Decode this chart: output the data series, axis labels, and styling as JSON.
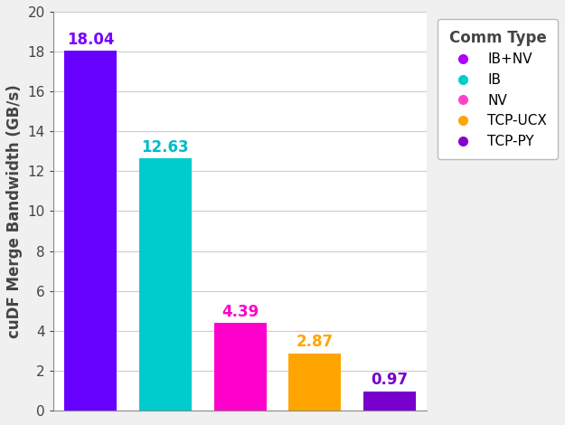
{
  "categories": [
    "IB+NV",
    "IB",
    "NV",
    "TCP-UCX",
    "TCP-PY"
  ],
  "values": [
    18.04,
    12.63,
    4.39,
    2.87,
    0.97
  ],
  "bar_colors": [
    "#6600FF",
    "#00CCCC",
    "#FF00CC",
    "#FFA500",
    "#7700CC"
  ],
  "label_colors": [
    "#7700FF",
    "#00BBCC",
    "#FF00CC",
    "#FFA500",
    "#7700CC"
  ],
  "legend_colors": [
    "#AA00FF",
    "#00CCCC",
    "#FF44CC",
    "#FFA500",
    "#8800CC"
  ],
  "legend_labels": [
    "IB+NV",
    "IB",
    "NV",
    "TCP-UCX",
    "TCP-PY"
  ],
  "legend_title": "Comm Type",
  "ylabel": "cuDF Merge Bandwidth (GB/s)",
  "ylim": [
    0,
    20
  ],
  "yticks": [
    0,
    2,
    4,
    6,
    8,
    10,
    12,
    14,
    16,
    18,
    20
  ],
  "background_color": "#f0f0f0",
  "axes_background": "#ffffff",
  "grid_color": "#cccccc",
  "label_fontsize": 12,
  "ylabel_fontsize": 12,
  "legend_fontsize": 11,
  "legend_title_fontsize": 12
}
